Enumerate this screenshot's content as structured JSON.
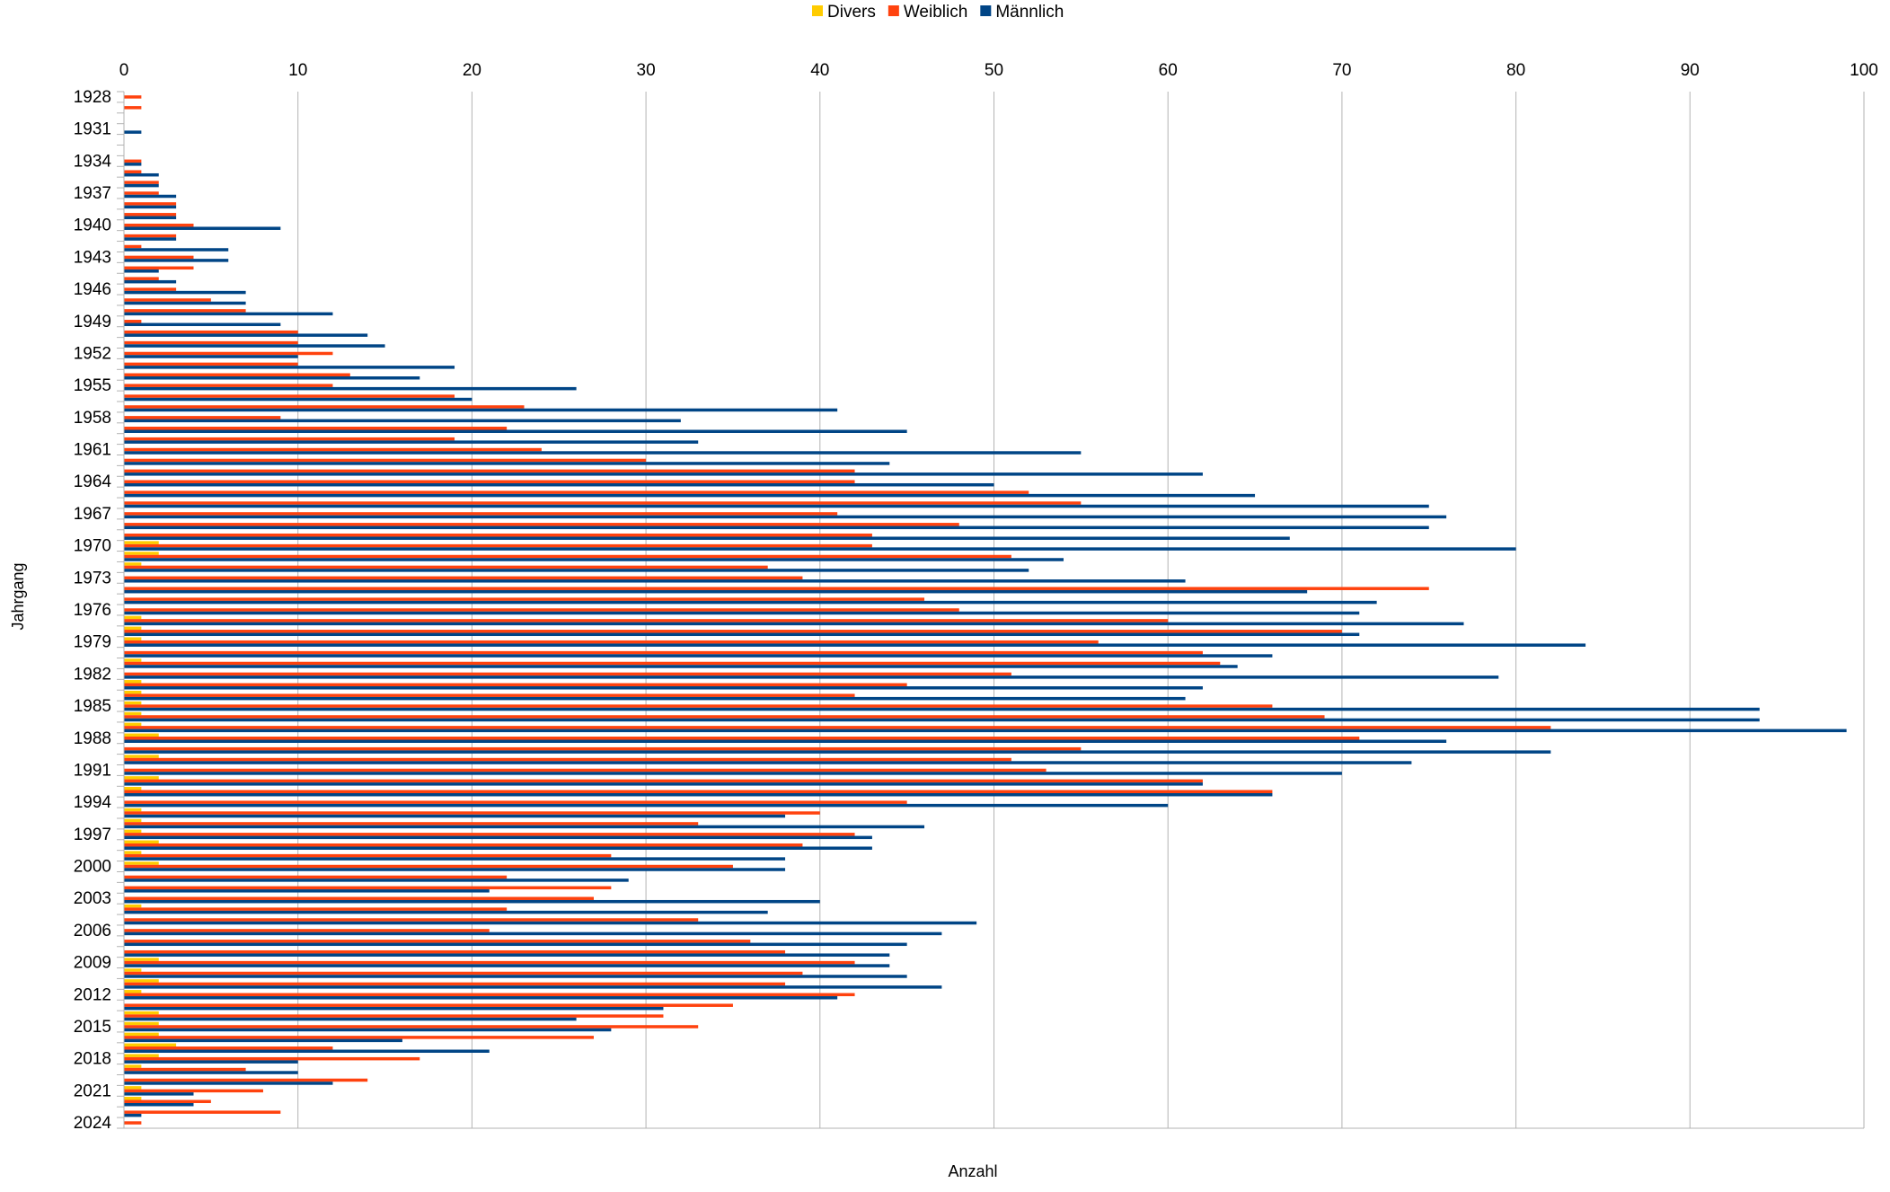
{
  "chart_data": {
    "type": "bar",
    "orientation": "horizontal",
    "xlabel": "Anzahl",
    "ylabel": "Jahrgang",
    "xlim": [
      0,
      100
    ],
    "x_ticks": [
      0,
      10,
      20,
      30,
      40,
      50,
      60,
      70,
      80,
      90,
      100
    ],
    "grid": true,
    "legend_position": "top-center",
    "categories": [
      "1928",
      "1929",
      "1930",
      "1931",
      "1932",
      "1933",
      "1934",
      "1935",
      "1936",
      "1937",
      "1938",
      "1939",
      "1940",
      "1941",
      "1942",
      "1943",
      "1944",
      "1945",
      "1946",
      "1947",
      "1948",
      "1949",
      "1950",
      "1951",
      "1952",
      "1953",
      "1954",
      "1955",
      "1956",
      "1957",
      "1958",
      "1959",
      "1960",
      "1961",
      "1962",
      "1963",
      "1964",
      "1965",
      "1966",
      "1967",
      "1968",
      "1969",
      "1970",
      "1971",
      "1972",
      "1973",
      "1974",
      "1975",
      "1976",
      "1977",
      "1978",
      "1979",
      "1980",
      "1981",
      "1982",
      "1983",
      "1984",
      "1985",
      "1986",
      "1987",
      "1988",
      "1989",
      "1990",
      "1991",
      "1992",
      "1993",
      "1994",
      "1995",
      "1996",
      "1997",
      "1998",
      "1999",
      "2000",
      "2001",
      "2002",
      "2003",
      "2004",
      "2005",
      "2006",
      "2007",
      "2008",
      "2009",
      "2010",
      "2011",
      "2012",
      "2013",
      "2014",
      "2015",
      "2016",
      "2017",
      "2018",
      "2019",
      "2020",
      "2021",
      "2022",
      "2023",
      "2024"
    ],
    "category_labels": [
      "1928",
      "1931",
      "1934",
      "1937",
      "1940",
      "1943",
      "1946",
      "1949",
      "1952",
      "1955",
      "1958",
      "1961",
      "1964",
      "1967",
      "1970",
      "1973",
      "1976",
      "1979",
      "1982",
      "1985",
      "1988",
      "1991",
      "1994",
      "1997",
      "2000",
      "2003",
      "2006",
      "2009",
      "2012",
      "2015",
      "2018",
      "2021",
      "2024"
    ],
    "series": [
      {
        "name": "Divers",
        "color": "#ffcc00",
        "values": [
          0,
          0,
          0,
          0,
          0,
          0,
          0,
          0,
          0,
          0,
          0,
          0,
          0,
          0,
          0,
          0,
          0,
          0,
          0,
          0,
          0,
          0,
          0,
          0,
          0,
          0,
          0,
          0,
          0,
          0,
          0,
          0,
          0,
          0,
          0,
          0,
          0,
          0,
          0,
          0,
          0,
          0,
          2,
          2,
          1,
          0,
          0,
          0,
          0,
          1,
          1,
          1,
          0,
          1,
          0,
          1,
          1,
          1,
          1,
          1,
          2,
          0,
          2,
          0,
          2,
          1,
          0,
          1,
          1,
          1,
          2,
          1,
          2,
          0,
          0,
          0,
          1,
          0,
          0,
          0,
          0,
          2,
          1,
          2,
          1,
          0,
          2,
          2,
          2,
          3,
          2,
          1,
          0,
          1,
          1,
          0,
          0
        ]
      },
      {
        "name": "Weiblich",
        "color": "#ff420e",
        "values": [
          1,
          1,
          0,
          0,
          0,
          0,
          1,
          1,
          2,
          2,
          3,
          3,
          4,
          3,
          1,
          4,
          4,
          2,
          3,
          5,
          7,
          1,
          10,
          10,
          12,
          10,
          13,
          12,
          19,
          23,
          9,
          22,
          19,
          24,
          30,
          42,
          42,
          52,
          55,
          41,
          48,
          43,
          43,
          51,
          37,
          39,
          75,
          46,
          48,
          60,
          70,
          56,
          62,
          63,
          51,
          45,
          42,
          66,
          69,
          82,
          71,
          55,
          51,
          53,
          62,
          66,
          45,
          40,
          33,
          42,
          39,
          28,
          35,
          22,
          28,
          27,
          22,
          33,
          21,
          36,
          38,
          42,
          39,
          38,
          42,
          35,
          31,
          33,
          27,
          12,
          17,
          7,
          14,
          8,
          5,
          9,
          1
        ]
      },
      {
        "name": "Männlich",
        "color": "#004586",
        "values": [
          0,
          0,
          0,
          1,
          0,
          0,
          1,
          2,
          2,
          3,
          3,
          3,
          9,
          3,
          6,
          6,
          2,
          3,
          7,
          7,
          12,
          9,
          14,
          15,
          10,
          19,
          17,
          26,
          20,
          41,
          32,
          45,
          33,
          55,
          44,
          62,
          50,
          65,
          75,
          76,
          75,
          67,
          80,
          54,
          52,
          61,
          68,
          72,
          71,
          77,
          71,
          84,
          66,
          64,
          79,
          62,
          61,
          94,
          94,
          99,
          76,
          82,
          74,
          70,
          62,
          66,
          60,
          38,
          46,
          43,
          43,
          38,
          38,
          29,
          21,
          40,
          37,
          49,
          47,
          45,
          44,
          44,
          45,
          47,
          41,
          31,
          26,
          28,
          16,
          21,
          10,
          10,
          12,
          4,
          4,
          1,
          0
        ]
      }
    ]
  }
}
